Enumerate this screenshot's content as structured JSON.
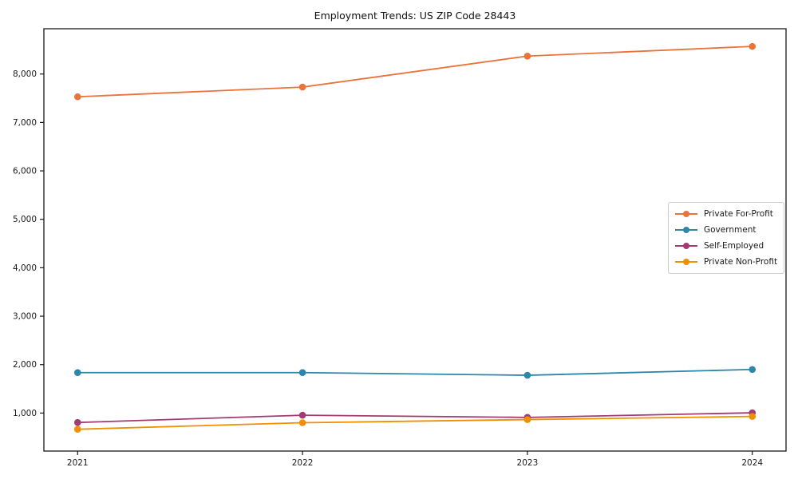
{
  "chart_data": {
    "type": "line",
    "title": "Employment Trends: US ZIP Code 28443",
    "categories": [
      "2021",
      "2022",
      "2023",
      "2024"
    ],
    "series": [
      {
        "name": "Private For-Profit",
        "color": "#E8743B",
        "values": [
          7530,
          7730,
          8370,
          8570
        ]
      },
      {
        "name": "Government",
        "color": "#2E86AB",
        "values": [
          1835,
          1835,
          1780,
          1900
        ]
      },
      {
        "name": "Self-Employed",
        "color": "#A23B72",
        "values": [
          805,
          955,
          910,
          1005
        ]
      },
      {
        "name": "Private Non-Profit",
        "color": "#F18F01",
        "values": [
          665,
          800,
          865,
          930
        ]
      }
    ],
    "xlabel": "",
    "ylabel": "",
    "xlim": [
      -0.15,
      3.15
    ],
    "ylim": [
      215,
      8935
    ],
    "yticks": [
      1000,
      2000,
      3000,
      4000,
      5000,
      6000,
      7000,
      8000
    ],
    "ytick_labels": [
      "1,000",
      "2,000",
      "3,000",
      "4,000",
      "5,000",
      "6,000",
      "7,000",
      "8,000"
    ],
    "grid": false,
    "legend_position": "center-right"
  }
}
